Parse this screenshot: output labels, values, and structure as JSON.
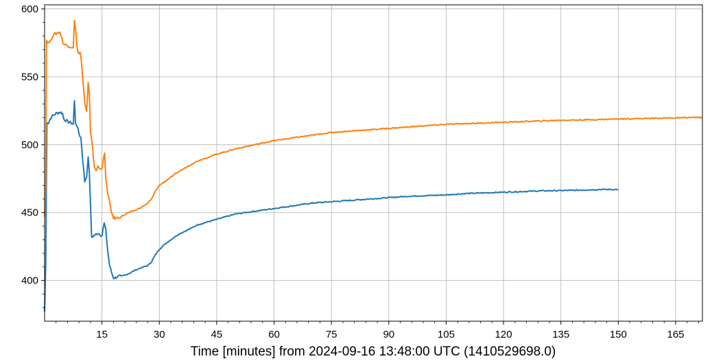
{
  "chart_data": {
    "type": "line",
    "title": "",
    "xlabel": "Time [minutes] from 2024-09-16 13:48:00 UTC (1410529698.0)",
    "ylabel": "",
    "xlim": [
      0,
      172
    ],
    "ylim": [
      370,
      603
    ],
    "xticks": [
      15,
      30,
      45,
      60,
      75,
      90,
      105,
      120,
      135,
      150,
      165
    ],
    "xtick_labels": [
      "15",
      "30",
      "45",
      "60",
      "75",
      "90",
      "105",
      "120",
      "135",
      "150",
      "165"
    ],
    "yticks": [
      400,
      450,
      500,
      550,
      600
    ],
    "ytick_labels": [
      "400",
      "450",
      "500",
      "550",
      "600"
    ],
    "grid": true,
    "series": [
      {
        "color": "#1f77b4",
        "points": [
          [
            0,
            377
          ],
          [
            0.3,
            412
          ],
          [
            0.6,
            517
          ],
          [
            1.0,
            516
          ],
          [
            1.5,
            519
          ],
          [
            2,
            521
          ],
          [
            3,
            523
          ],
          [
            4,
            524
          ],
          [
            4.7,
            523
          ],
          [
            5,
            519
          ],
          [
            5.5,
            518
          ],
          [
            6,
            517
          ],
          [
            7,
            516
          ],
          [
            7.5,
            515
          ],
          [
            7.8,
            532
          ],
          [
            8.1,
            516
          ],
          [
            8.5,
            514
          ],
          [
            9,
            508
          ],
          [
            9.5,
            505
          ],
          [
            10,
            488
          ],
          [
            10.5,
            473
          ],
          [
            11,
            477
          ],
          [
            11.4,
            490
          ],
          [
            11.7,
            480
          ],
          [
            12.0,
            455
          ],
          [
            12.3,
            432
          ],
          [
            13,
            433
          ],
          [
            13.5,
            434
          ],
          [
            14,
            435
          ],
          [
            14.5,
            434
          ],
          [
            15,
            433
          ],
          [
            15.3,
            438
          ],
          [
            15.6,
            442
          ],
          [
            16,
            437
          ],
          [
            16.5,
            422
          ],
          [
            17,
            411
          ],
          [
            17.5,
            406
          ],
          [
            18,
            402
          ],
          [
            18.5,
            402
          ],
          [
            19,
            403
          ],
          [
            20,
            403
          ],
          [
            22,
            405
          ],
          [
            24,
            408
          ],
          [
            26,
            410
          ],
          [
            27,
            411
          ],
          [
            28,
            414
          ],
          [
            29,
            419
          ],
          [
            30,
            423
          ],
          [
            32,
            428
          ],
          [
            35,
            434
          ],
          [
            38,
            438
          ],
          [
            40,
            441
          ],
          [
            45,
            445
          ],
          [
            50,
            449
          ],
          [
            55,
            451
          ],
          [
            60,
            453
          ],
          [
            65,
            455
          ],
          [
            70,
            457
          ],
          [
            75,
            458
          ],
          [
            80,
            459
          ],
          [
            85,
            460
          ],
          [
            90,
            461
          ],
          [
            95,
            462
          ],
          [
            100,
            462.5
          ],
          [
            105,
            463
          ],
          [
            110,
            464
          ],
          [
            115,
            464.5
          ],
          [
            120,
            465
          ],
          [
            125,
            465.5
          ],
          [
            130,
            466
          ],
          [
            135,
            466.2
          ],
          [
            140,
            466.5
          ],
          [
            145,
            467
          ],
          [
            150,
            467
          ]
        ]
      },
      {
        "color": "#ff7f0e",
        "points": [
          [
            0,
            448
          ],
          [
            0.3,
            470
          ],
          [
            0.5,
            577
          ],
          [
            1,
            575
          ],
          [
            1.5,
            576
          ],
          [
            2,
            580
          ],
          [
            3,
            582
          ],
          [
            4,
            583
          ],
          [
            4.5,
            578
          ],
          [
            5,
            574
          ],
          [
            6,
            573
          ],
          [
            7,
            572
          ],
          [
            7.5,
            572
          ],
          [
            7.8,
            591
          ],
          [
            8.1,
            585
          ],
          [
            8.5,
            571
          ],
          [
            9,
            567
          ],
          [
            9.3,
            568
          ],
          [
            9.6,
            562
          ],
          [
            10,
            548
          ],
          [
            10.5,
            530
          ],
          [
            11,
            524
          ],
          [
            11.4,
            545
          ],
          [
            11.7,
            537
          ],
          [
            12,
            510
          ],
          [
            12.5,
            500
          ],
          [
            13,
            483
          ],
          [
            13.5,
            481
          ],
          [
            14,
            484
          ],
          [
            14.5,
            483
          ],
          [
            15,
            482
          ],
          [
            15.4,
            490
          ],
          [
            15.7,
            493
          ],
          [
            16,
            476
          ],
          [
            16.5,
            463
          ],
          [
            17,
            458
          ],
          [
            17.5,
            450
          ],
          [
            18,
            446
          ],
          [
            18.5,
            446
          ],
          [
            19,
            446
          ],
          [
            20,
            447
          ],
          [
            22,
            450
          ],
          [
            24,
            452
          ],
          [
            26,
            455
          ],
          [
            27,
            457
          ],
          [
            28,
            460
          ],
          [
            29,
            466
          ],
          [
            30,
            470
          ],
          [
            32,
            474
          ],
          [
            35,
            480
          ],
          [
            38,
            485
          ],
          [
            40,
            488
          ],
          [
            45,
            493
          ],
          [
            50,
            497
          ],
          [
            55,
            500
          ],
          [
            60,
            503
          ],
          [
            65,
            505
          ],
          [
            70,
            507
          ],
          [
            75,
            509
          ],
          [
            80,
            510
          ],
          [
            85,
            511
          ],
          [
            90,
            512
          ],
          [
            95,
            513
          ],
          [
            100,
            514
          ],
          [
            105,
            515
          ],
          [
            110,
            515.5
          ],
          [
            115,
            516
          ],
          [
            120,
            516.5
          ],
          [
            125,
            517
          ],
          [
            130,
            517.5
          ],
          [
            135,
            518
          ],
          [
            140,
            518.2
          ],
          [
            145,
            518.5
          ],
          [
            150,
            519
          ],
          [
            155,
            519.2
          ],
          [
            160,
            519.5
          ],
          [
            165,
            519.7
          ],
          [
            170,
            520
          ],
          [
            172,
            520
          ]
        ]
      }
    ]
  }
}
